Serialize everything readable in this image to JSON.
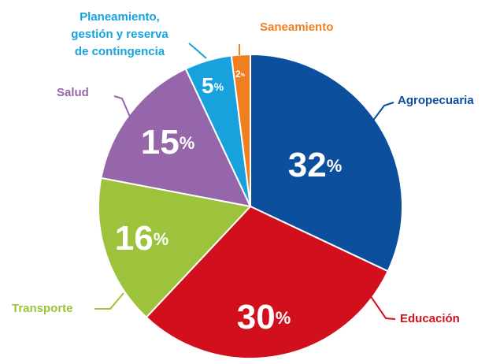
{
  "chart_data": {
    "type": "pie",
    "categories": [
      "Agropecuaria",
      "Educación",
      "Transporte",
      "Salud",
      "Planeamiento,\ngestión y reserva\nde contingencia",
      "Saneamiento"
    ],
    "values": [
      32,
      30,
      16,
      15,
      5,
      2
    ],
    "value_labels": [
      "32%",
      "30%",
      "16%",
      "15%",
      "5%",
      "2%"
    ],
    "colors": [
      "#0b4f9d",
      "#d20f1d",
      "#9cc33b",
      "#9566a9",
      "#17a2de",
      "#f07f1f"
    ]
  }
}
